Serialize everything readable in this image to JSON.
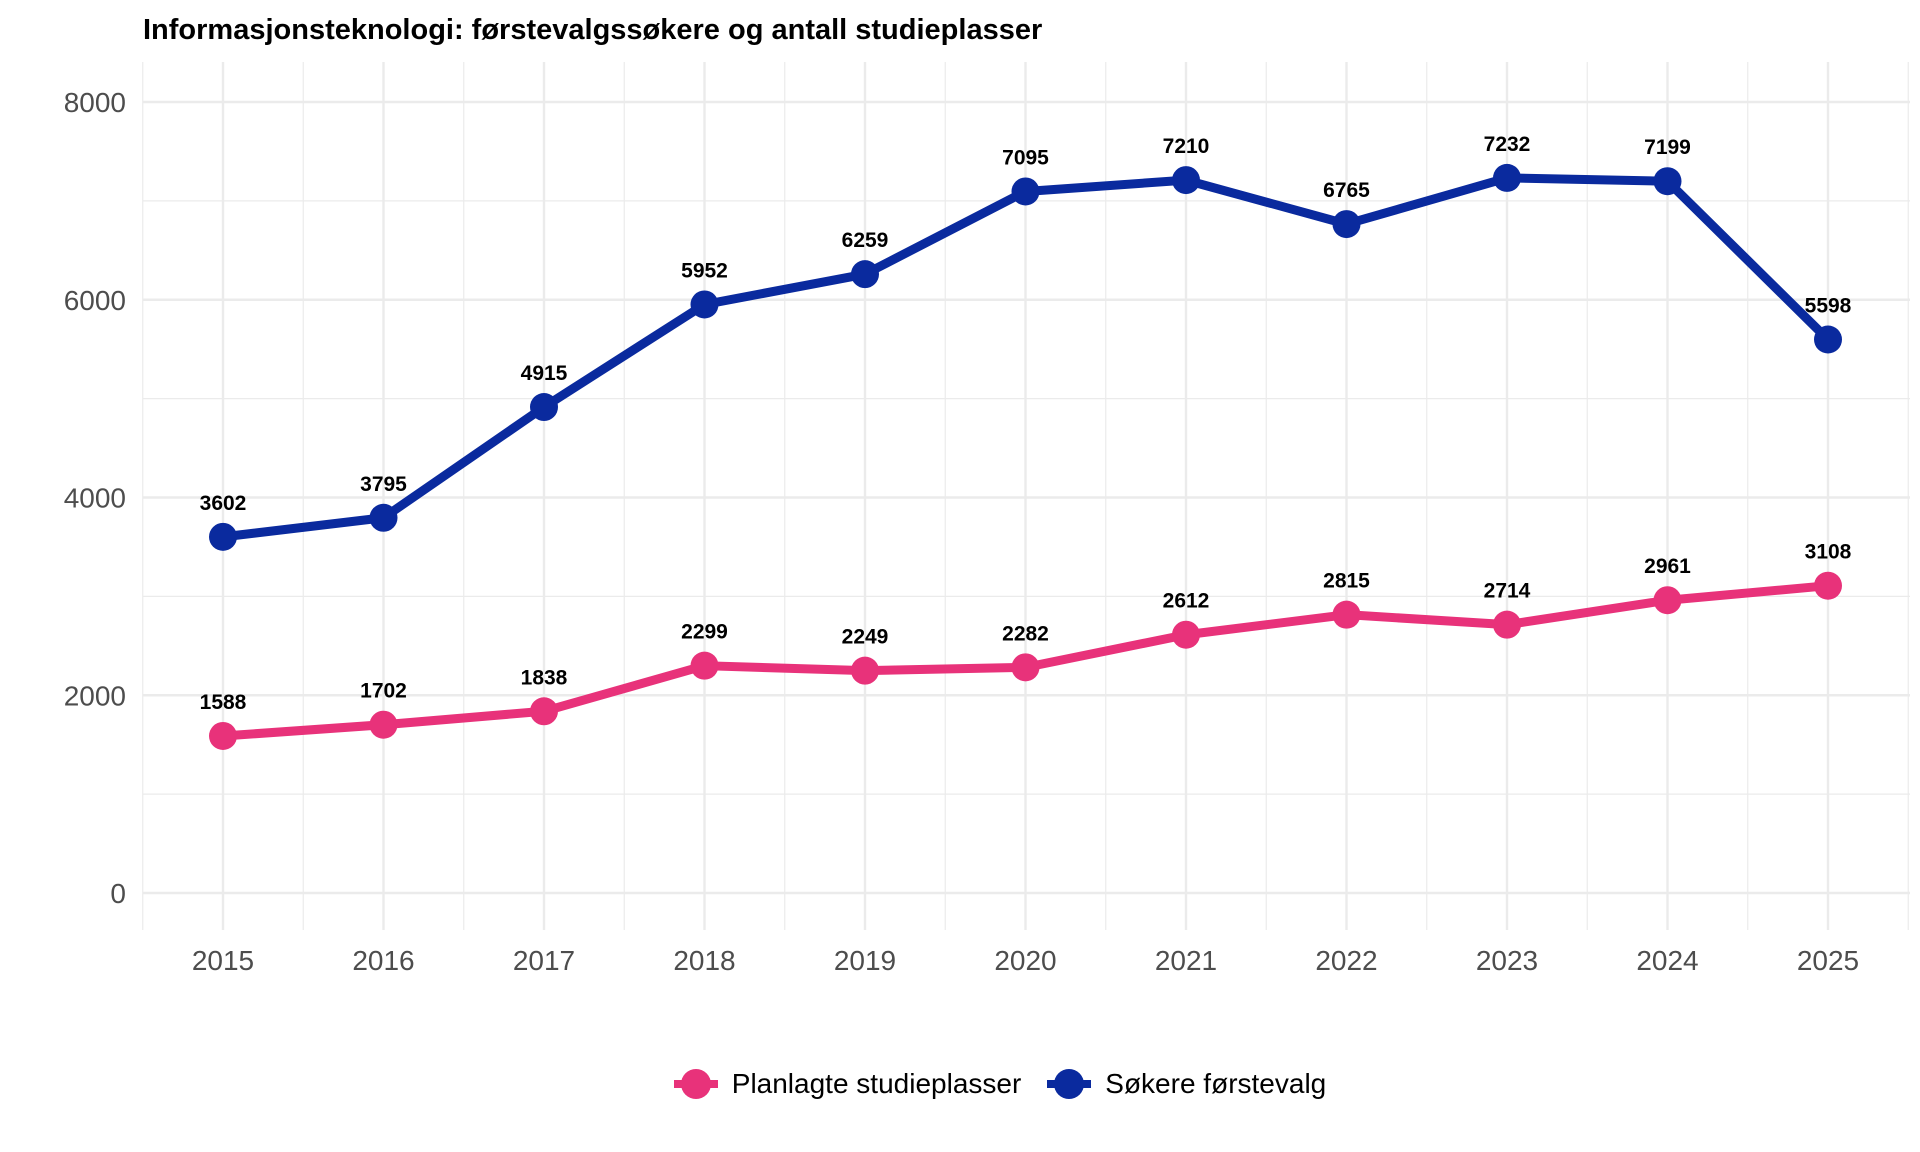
{
  "chart_data": {
    "type": "line",
    "title": "Informasjonsteknologi: førstevalgssøkere og antall studieplasser",
    "xlabel": "",
    "ylabel": "",
    "categories": [
      "2015",
      "2016",
      "2017",
      "2018",
      "2019",
      "2020",
      "2021",
      "2022",
      "2023",
      "2024",
      "2025"
    ],
    "ylim": [
      0,
      8000
    ],
    "yticks": [
      "0",
      "2000",
      "4000",
      "6000",
      "8000"
    ],
    "grid": true,
    "legend_position": "bottom",
    "series": [
      {
        "name": "Planlagte studieplasser",
        "color": "#e8327a",
        "values": [
          1588,
          1702,
          1838,
          2299,
          2249,
          2282,
          2612,
          2815,
          2714,
          2961,
          3108
        ]
      },
      {
        "name": "Søkere førstevalg",
        "color": "#0a2a9e",
        "values": [
          3602,
          3795,
          4915,
          5952,
          6259,
          7095,
          7210,
          6765,
          7232,
          7199,
          5598
        ]
      }
    ]
  }
}
